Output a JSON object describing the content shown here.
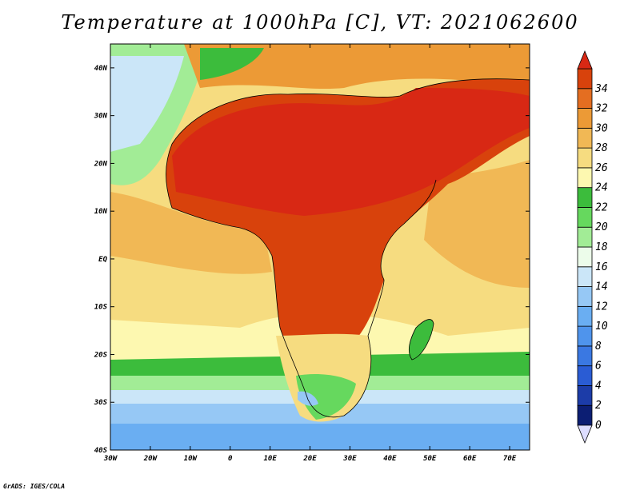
{
  "title": "Temperature at 1000hPa [C], VT: 2021062600",
  "credit": "GrADS: IGES/COLA",
  "map": {
    "projection": "latlon",
    "lon_range": [
      -30,
      75
    ],
    "lat_range": [
      -40,
      45
    ],
    "variable": "Temperature at 1000hPa",
    "units": "C",
    "valid_time": "2021062600"
  },
  "axes": {
    "lat_ticks": [
      {
        "value": 40,
        "label": "40N"
      },
      {
        "value": 30,
        "label": "30N"
      },
      {
        "value": 20,
        "label": "20N"
      },
      {
        "value": 10,
        "label": "10N"
      },
      {
        "value": 0,
        "label": "EQ"
      },
      {
        "value": -10,
        "label": "10S"
      },
      {
        "value": -20,
        "label": "20S"
      },
      {
        "value": -30,
        "label": "30S"
      },
      {
        "value": -40,
        "label": "40S"
      }
    ],
    "lon_ticks": [
      {
        "value": -30,
        "label": "30W"
      },
      {
        "value": -20,
        "label": "20W"
      },
      {
        "value": -10,
        "label": "10W"
      },
      {
        "value": 0,
        "label": "0"
      },
      {
        "value": 10,
        "label": "10E"
      },
      {
        "value": 20,
        "label": "20E"
      },
      {
        "value": 30,
        "label": "30E"
      },
      {
        "value": 40,
        "label": "40E"
      },
      {
        "value": 50,
        "label": "50E"
      },
      {
        "value": 60,
        "label": "60E"
      },
      {
        "value": 70,
        "label": "70E"
      }
    ]
  },
  "colorbar": {
    "labels": [
      "0",
      "2",
      "4",
      "6",
      "8",
      "10",
      "12",
      "14",
      "16",
      "18",
      "20",
      "22",
      "24",
      "26",
      "28",
      "30",
      "32",
      "34"
    ],
    "colors": [
      "#ddddff",
      "#0c1e73",
      "#1c3ca8",
      "#2a5cd4",
      "#3a78e2",
      "#4f94ec",
      "#6aaef2",
      "#96c8f5",
      "#cbe6f8",
      "#ecfcea",
      "#a2ec96",
      "#66d85e",
      "#3cbc3c",
      "#fdf8b0",
      "#f6dc80",
      "#f1b855",
      "#ec9a36",
      "#e46e21",
      "#d8420c",
      "#d82814"
    ]
  }
}
